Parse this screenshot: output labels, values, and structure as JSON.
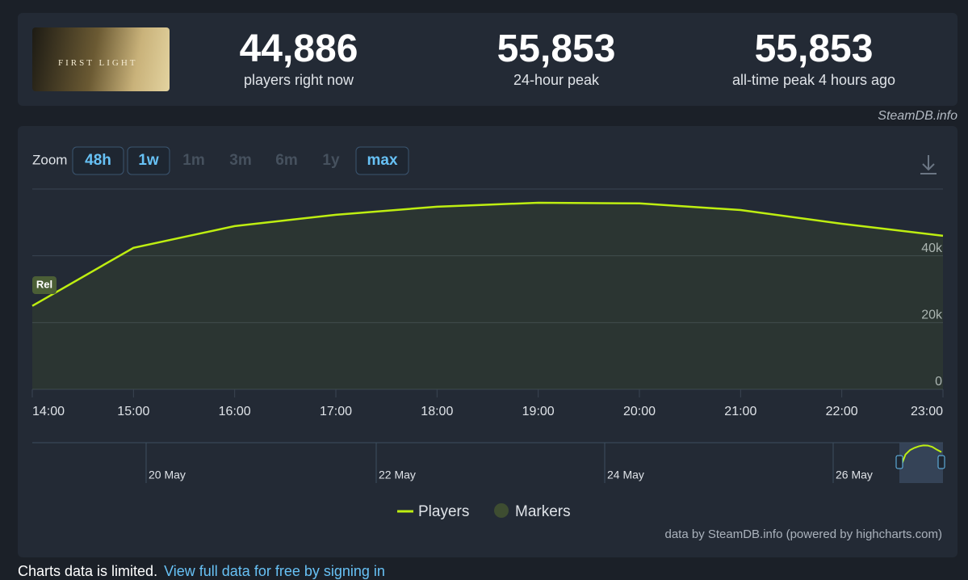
{
  "header": {
    "image_text": "FIRST LIGHT",
    "stats": [
      {
        "value": "44,886",
        "label": "players right now"
      },
      {
        "value": "55,853",
        "label": "24-hour peak"
      },
      {
        "value": "55,853",
        "label": "all-time peak 4 hours ago"
      }
    ]
  },
  "attribution": "SteamDB.info",
  "zoom": {
    "label": "Zoom",
    "buttons": [
      "48h",
      "1w",
      "1m",
      "3m",
      "6m",
      "1y",
      "max"
    ]
  },
  "chart_data": {
    "type": "line",
    "categories": [
      "14:00",
      "15:00",
      "16:00",
      "17:00",
      "18:00",
      "19:00",
      "20:00",
      "21:00",
      "22:00",
      "23:00"
    ],
    "series": [
      {
        "name": "Players",
        "color": "#beee11",
        "values": [
          25000,
          42400,
          48900,
          52300,
          54700,
          55900,
          55700,
          53700,
          49600,
          46000
        ]
      }
    ],
    "markers_legend": "Markers",
    "markers_color": "#3e4d31",
    "annotation": "Rel",
    "ylim": [
      0,
      60000
    ],
    "yticks": [
      0,
      {
        "value": 20000,
        "label": "20k"
      },
      {
        "value": 40000,
        "label": "40k"
      }
    ],
    "grid": true
  },
  "navigator": {
    "labels": [
      "20 May",
      "22 May",
      "24 May",
      "26 May"
    ]
  },
  "credits": "data by SteamDB.info (powered by highcharts.com)",
  "notice": {
    "text": "Charts data is limited.",
    "link": "View full data for free by signing in"
  }
}
